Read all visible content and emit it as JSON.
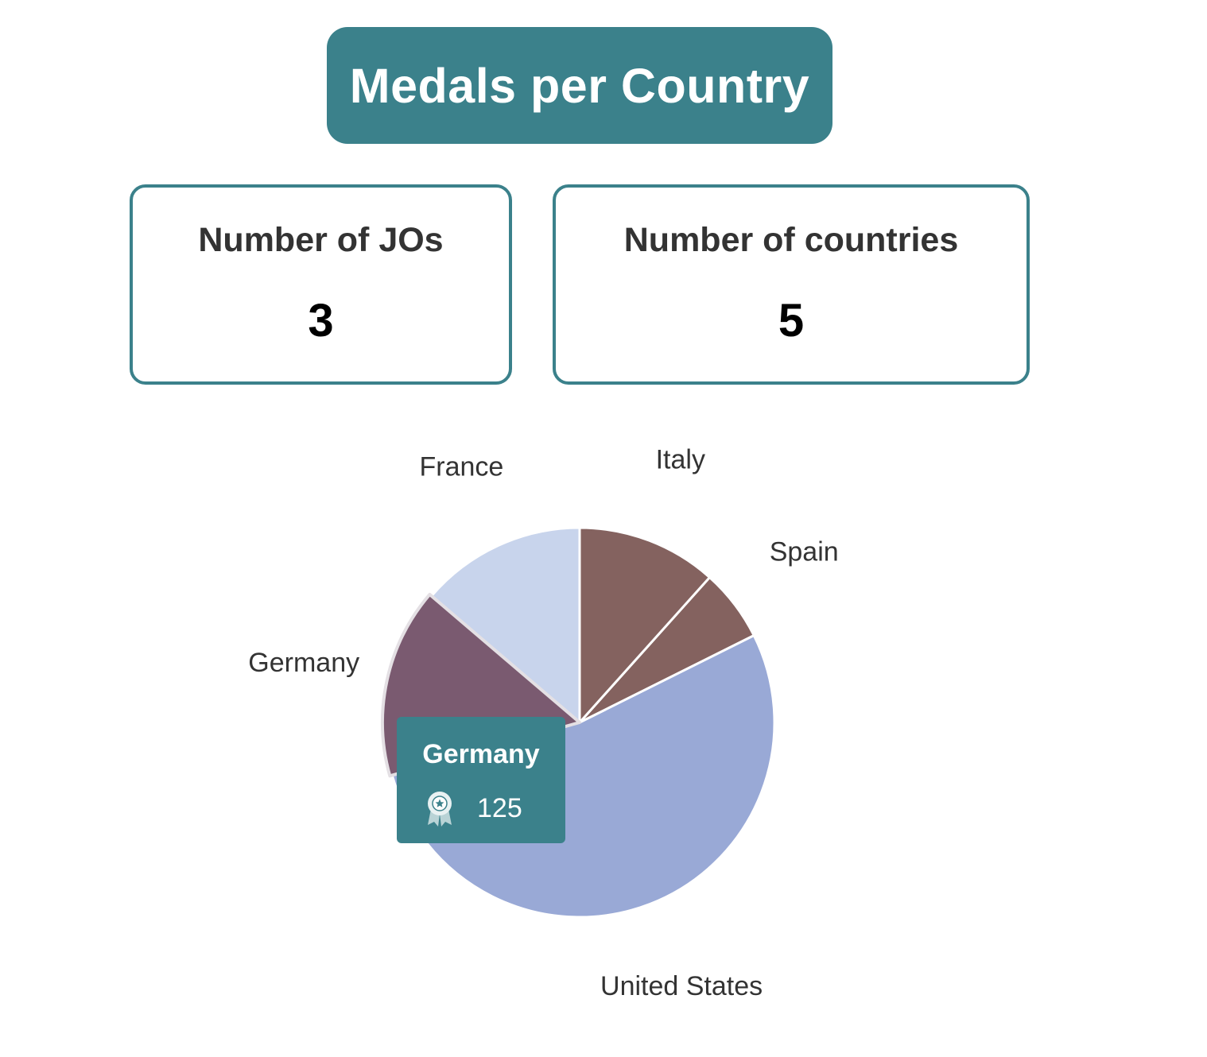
{
  "header": {
    "title": "Medals per Country"
  },
  "stats": [
    {
      "label": "Number of JOs",
      "value": "3"
    },
    {
      "label": "Number of countries",
      "value": "5"
    }
  ],
  "colors": {
    "accent": "#3b818b",
    "card_border": "#3b818b"
  },
  "chart_data": {
    "type": "pie",
    "slices": [
      {
        "label": "Italy",
        "value": 93,
        "color": "#84625f"
      },
      {
        "label": "Spain",
        "value": 48,
        "color": "#84625f"
      },
      {
        "label": "United States",
        "value": 424,
        "color": "#99a9d6"
      },
      {
        "label": "Germany",
        "value": 125,
        "color": "#7a5a70"
      },
      {
        "label": "France",
        "value": 110,
        "color": "#c8d4ec"
      }
    ],
    "highlighted": "Germany"
  },
  "tooltip": {
    "title": "Germany",
    "value": "125",
    "icon": "medal-icon"
  }
}
